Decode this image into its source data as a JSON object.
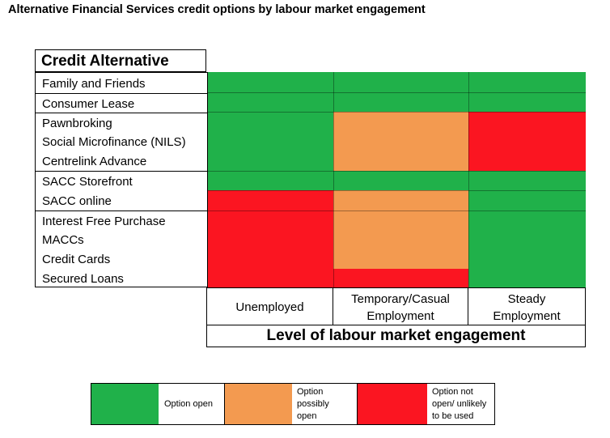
{
  "title": "Alternative Financial Services credit options by labour market engagement",
  "colors": {
    "green": "#20b14a",
    "orange": "#f39a50",
    "red": "#fb1521"
  },
  "row_header": "Credit Alternative",
  "rows": [
    "Family and Friends",
    "Consumer Lease",
    "Pawnbroking",
    "Social Microfinance  (NILS)",
    "Centrelink Advance",
    "SACC Storefront",
    "SACC online",
    "Interest Free Purchase",
    "MACCs",
    "Credit Cards",
    "Secured Loans"
  ],
  "columns": [
    {
      "line1": "Unemployed",
      "line2": ""
    },
    {
      "line1": "Temporary/Casual",
      "line2": "Employment"
    },
    {
      "line1": "Steady",
      "line2": "Employment"
    }
  ],
  "axis_label": "Level of labour market engagement",
  "matrix": [
    [
      "green",
      "green",
      "green"
    ],
    [
      "green",
      "green",
      "green"
    ],
    [
      "green",
      "orange",
      "red"
    ],
    [
      "green",
      "orange",
      "red"
    ],
    [
      "green",
      "orange",
      "red"
    ],
    [
      "green",
      "green",
      "green"
    ],
    [
      "red",
      "orange",
      "green"
    ],
    [
      "red",
      "orange",
      "green"
    ],
    [
      "red",
      "orange",
      "green"
    ],
    [
      "red",
      "orange",
      "green"
    ],
    [
      "red",
      "red",
      "green"
    ]
  ],
  "legend": [
    {
      "color": "green",
      "label": "Option open"
    },
    {
      "color": "orange",
      "label": "Option possibly open"
    },
    {
      "color": "red",
      "label": "Option not open/ unlikely to be used"
    }
  ]
}
